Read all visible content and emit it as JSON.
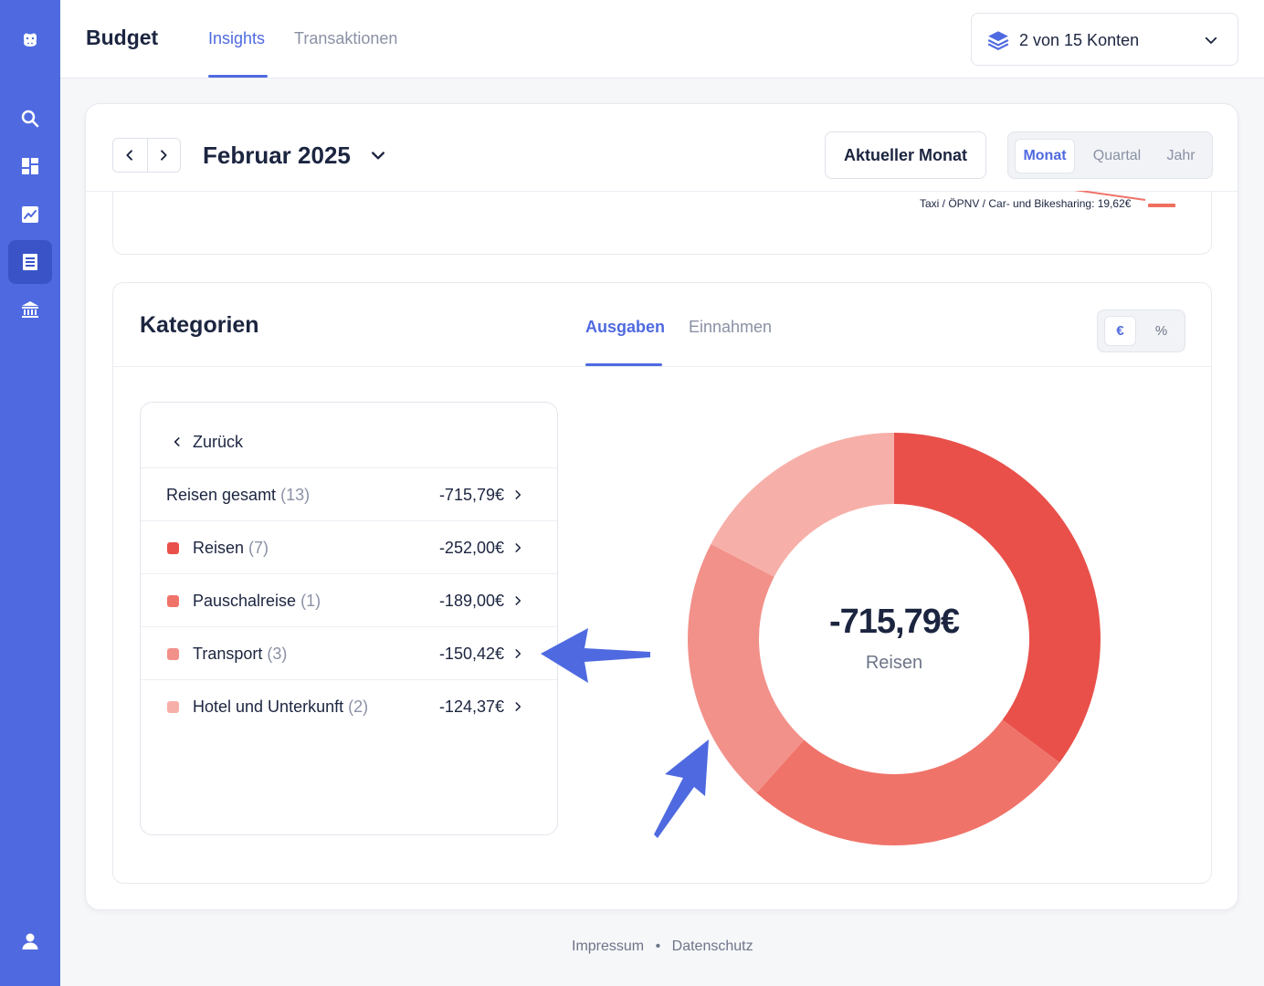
{
  "app": {
    "title": "Budget"
  },
  "header": {
    "tabs": [
      {
        "label": "Insights",
        "active": true
      },
      {
        "label": "Transaktionen",
        "active": false
      }
    ],
    "accounts_label": "2 von 15 Konten"
  },
  "sidebar": {
    "items": [
      {
        "icon": "logo-icon"
      },
      {
        "icon": "search-icon"
      },
      {
        "icon": "dashboard-icon"
      },
      {
        "icon": "chart-icon"
      },
      {
        "icon": "budget-list-icon",
        "active": true
      },
      {
        "icon": "bank-icon"
      },
      {
        "icon": "user-icon"
      }
    ]
  },
  "period": {
    "month_label": "Februar 2025",
    "current_month_button": "Aktueller Monat",
    "options": [
      "Monat",
      "Quartal",
      "Jahr"
    ],
    "selected": "Monat"
  },
  "top_chart_snippet": {
    "label": "Taxi / ÖPNV / Car- und Bikesharing: 19,62€"
  },
  "categories": {
    "title": "Kategorien",
    "tabs": [
      "Ausgaben",
      "Einnahmen"
    ],
    "active_tab": "Ausgaben",
    "units": [
      "€",
      "%"
    ],
    "active_unit": "€",
    "back_label": "Zurück",
    "total": {
      "name": "Reisen gesamt",
      "count": "(13)",
      "amount": "-715,79€"
    },
    "rows": [
      {
        "name": "Reisen",
        "count": "(7)",
        "amount": "-252,00€",
        "color": "#e9504a"
      },
      {
        "name": "Pauschalreise",
        "count": "(1)",
        "amount": "-189,00€",
        "color": "#f07369"
      },
      {
        "name": "Transport",
        "count": "(3)",
        "amount": "-150,42€",
        "color": "#f2918a"
      },
      {
        "name": "Hotel und Unterkunft",
        "count": "(2)",
        "amount": "-124,37€",
        "color": "#f7b0a9"
      }
    ],
    "donut_total": "-715,79€",
    "donut_label": "Reisen"
  },
  "chart_data": {
    "type": "pie",
    "categories": [
      "Reisen",
      "Pauschalreise",
      "Transport",
      "Hotel und Unterkunft"
    ],
    "values": [
      252.0,
      189.0,
      150.42,
      124.37
    ],
    "colors": [
      "#e9504a",
      "#f07369",
      "#f2918a",
      "#f7b0a9"
    ]
  },
  "footer": {
    "links": [
      "Impressum",
      "Datenschutz"
    ],
    "separator": "•"
  },
  "colors": {
    "accent": "#4f6ae0",
    "text": "#1c2540",
    "muted": "#8a91a4"
  }
}
